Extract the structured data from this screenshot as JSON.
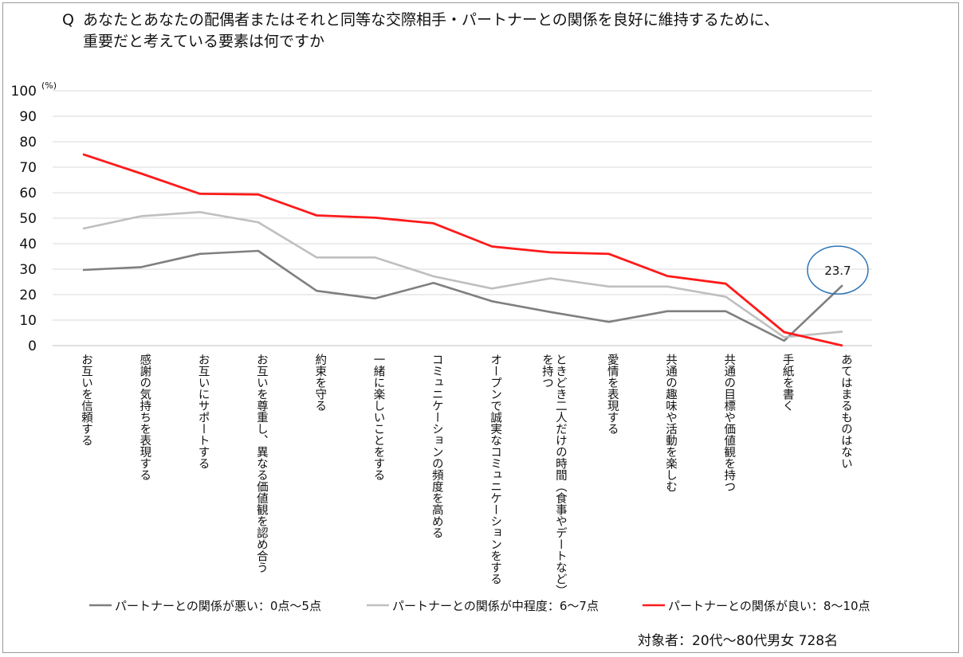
{
  "question": {
    "mark": "Q",
    "line1": "あなたとあなたの配偶者またはそれと同等な交際相手・パートナーとの関係を良好に維持するために、",
    "line2": "重要だと考えている要素は何ですか"
  },
  "footnote": "対象者：20代～80代男女 728名",
  "chart_data": {
    "type": "line",
    "y_unit": "(%)",
    "ylim": [
      0,
      100
    ],
    "yticks": [
      0,
      10,
      20,
      30,
      40,
      50,
      60,
      70,
      80,
      90,
      100
    ],
    "grid": true,
    "legend_position": "bottom",
    "categories": [
      "お互いを信頼する",
      "感謝の気持ちを表現する",
      "お互いにサポートする",
      "お互いを尊重し、異なる価値観を認め合う",
      "約束を守る",
      "一緒に楽しいことをする",
      "コミュニケーションの頻度を高める",
      "オープンで誠実なコミュニケーションをする",
      "ときどき二人だけの時間（食事やデートなど）を持つ",
      "愛情を表現する",
      "共通の趣味や活動を楽しむ",
      "共通の目標や価値観を持つ",
      "手紙を書く",
      "あてはまるものはない"
    ],
    "category_lines": [
      [
        "お互いを信頼する"
      ],
      [
        "感謝の気持ちを表現する"
      ],
      [
        "お互いにサポートする"
      ],
      [
        "お互いを尊重し、異なる価値観を認め合う"
      ],
      [
        "約束を守る"
      ],
      [
        "一緒に楽しいことをする"
      ],
      [
        "コミュニケーションの頻度を高める"
      ],
      [
        "オープンで誠実なコミュニケーションをする"
      ],
      [
        "ときどき二人だけの時間（食事やデートなど）",
        "を持つ"
      ],
      [
        "愛情を表現する"
      ],
      [
        "共通の趣味や活動を楽しむ"
      ],
      [
        "共通の目標や価値観を持つ"
      ],
      [
        "手紙を書く"
      ],
      [
        "あてはまるものはない"
      ]
    ],
    "series": [
      {
        "name": "パートナーとの関係が悪い：0点～5点",
        "color": "#7f7f7f",
        "values": [
          29.7,
          30.8,
          36.0,
          37.2,
          21.5,
          18.5,
          24.6,
          17.4,
          13.2,
          9.3,
          13.5,
          13.5,
          1.9,
          23.7
        ]
      },
      {
        "name": "パートナーとの関係が中程度：6～7点",
        "color": "#bfbfbf",
        "values": [
          45.9,
          50.8,
          52.4,
          48.4,
          34.6,
          34.6,
          27.2,
          22.4,
          26.4,
          23.2,
          23.2,
          19.2,
          3.3,
          5.5
        ]
      },
      {
        "name": "パートナーとの関係が良い：8～10点",
        "color": "#ff1a1a",
        "values": [
          75.1,
          67.5,
          59.6,
          59.3,
          51.1,
          50.2,
          48.0,
          38.9,
          36.6,
          36.0,
          27.3,
          24.3,
          5.3,
          0.0
        ]
      }
    ],
    "annotation": {
      "series_index": 0,
      "category_index": 13,
      "label": "23.7",
      "circle_color": "#2e75b6"
    }
  }
}
